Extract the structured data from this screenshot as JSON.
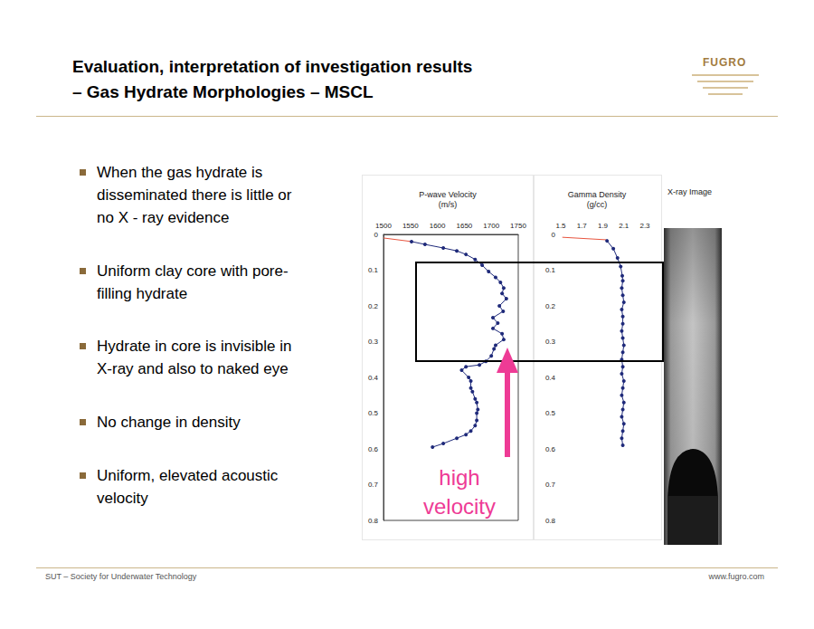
{
  "slide": {
    "title": [
      "Evaluation, interpretation of investigation results",
      "– Gas Hydrate Morphologies – MSCL"
    ],
    "logo": "FUGRO",
    "bullets": [
      [
        "When the gas hydrate is",
        "disseminated there is little or",
        "no X - ray evidence"
      ],
      [
        "Uniform clay core with pore-",
        "filling hydrate"
      ],
      [
        "Hydrate in core is invisible in",
        "X-ray and also to naked eye"
      ],
      [
        "No change in density"
      ],
      [
        "Uniform, elevated acoustic",
        "velocity"
      ]
    ],
    "image_label": "X-ray Image",
    "footer_left": "SUT – Society for Underwater Technology",
    "footer_right": "www.fugro.com"
  },
  "chart_data": [
    {
      "type": "line",
      "title": "P-wave Velocity",
      "xlabel": "(m/s)",
      "annotation": [
        "high",
        "velocity"
      ],
      "xlim": [
        1500,
        1750
      ],
      "xticks": [
        1500,
        1550,
        1600,
        1650,
        1700,
        1750
      ],
      "ylim": [
        0,
        0.8
      ],
      "yticks": [
        0,
        0.1,
        0.2,
        0.3,
        0.4,
        0.5,
        0.6,
        0.7,
        0.8
      ],
      "grid": false,
      "series": [
        {
          "color": "#e8553f",
          "marker": "none",
          "x": [
            1500,
            1552
          ],
          "values": [
            0.01,
            0.02
          ]
        },
        {
          "color": "#1f2a7a",
          "marker": "circle",
          "x": [
            1552,
            1577,
            1611,
            1636,
            1653,
            1670,
            1683,
            1695,
            1708,
            1717,
            1723,
            1720,
            1728,
            1715,
            1722,
            1703,
            1712,
            1703,
            1720,
            1723,
            1708,
            1705,
            1700,
            1690,
            1678,
            1653,
            1645,
            1658,
            1662,
            1662,
            1665,
            1670,
            1673,
            1675,
            1673,
            1673,
            1670,
            1662,
            1653,
            1636,
            1611,
            1591
          ],
          "values": [
            0.02,
            0.028,
            0.038,
            0.046,
            0.056,
            0.07,
            0.086,
            0.104,
            0.12,
            0.134,
            0.15,
            0.165,
            0.18,
            0.2,
            0.215,
            0.233,
            0.248,
            0.263,
            0.278,
            0.294,
            0.31,
            0.32,
            0.34,
            0.355,
            0.365,
            0.37,
            0.38,
            0.4,
            0.41,
            0.43,
            0.44,
            0.46,
            0.47,
            0.49,
            0.5,
            0.52,
            0.535,
            0.55,
            0.56,
            0.57,
            0.585,
            0.595
          ]
        }
      ]
    },
    {
      "type": "line",
      "title": "Gamma Density",
      "xlabel": "(g/cc)",
      "xlim": [
        1.5,
        2.3
      ],
      "xticks": [
        1.5,
        1.7,
        1.9,
        2.1,
        2.3
      ],
      "ylim": [
        0,
        0.8
      ],
      "yticks": [
        0,
        0.1,
        0.2,
        0.3,
        0.4,
        0.5,
        0.6,
        0.7,
        0.8
      ],
      "grid": false,
      "series": [
        {
          "color": "#e8553f",
          "marker": "none",
          "x": [
            1.515,
            1.93
          ],
          "values": [
            0.008,
            0.015
          ]
        },
        {
          "color": "#1f2a7a",
          "marker": "circle",
          "x": [
            1.94,
            2.0,
            2.04,
            2.07,
            2.085,
            2.09,
            2.08,
            2.09,
            2.1,
            2.08,
            2.09,
            2.09,
            2.08,
            2.09,
            2.1,
            2.09,
            2.08,
            2.09,
            2.08,
            2.1,
            2.09,
            2.08,
            2.1,
            2.09,
            2.08,
            2.1,
            2.09,
            2.08,
            2.09
          ],
          "values": [
            0.018,
            0.04,
            0.066,
            0.09,
            0.116,
            0.13,
            0.15,
            0.17,
            0.19,
            0.21,
            0.23,
            0.25,
            0.27,
            0.29,
            0.31,
            0.33,
            0.35,
            0.37,
            0.39,
            0.41,
            0.43,
            0.45,
            0.47,
            0.49,
            0.51,
            0.53,
            0.55,
            0.57,
            0.59
          ]
        }
      ]
    }
  ]
}
